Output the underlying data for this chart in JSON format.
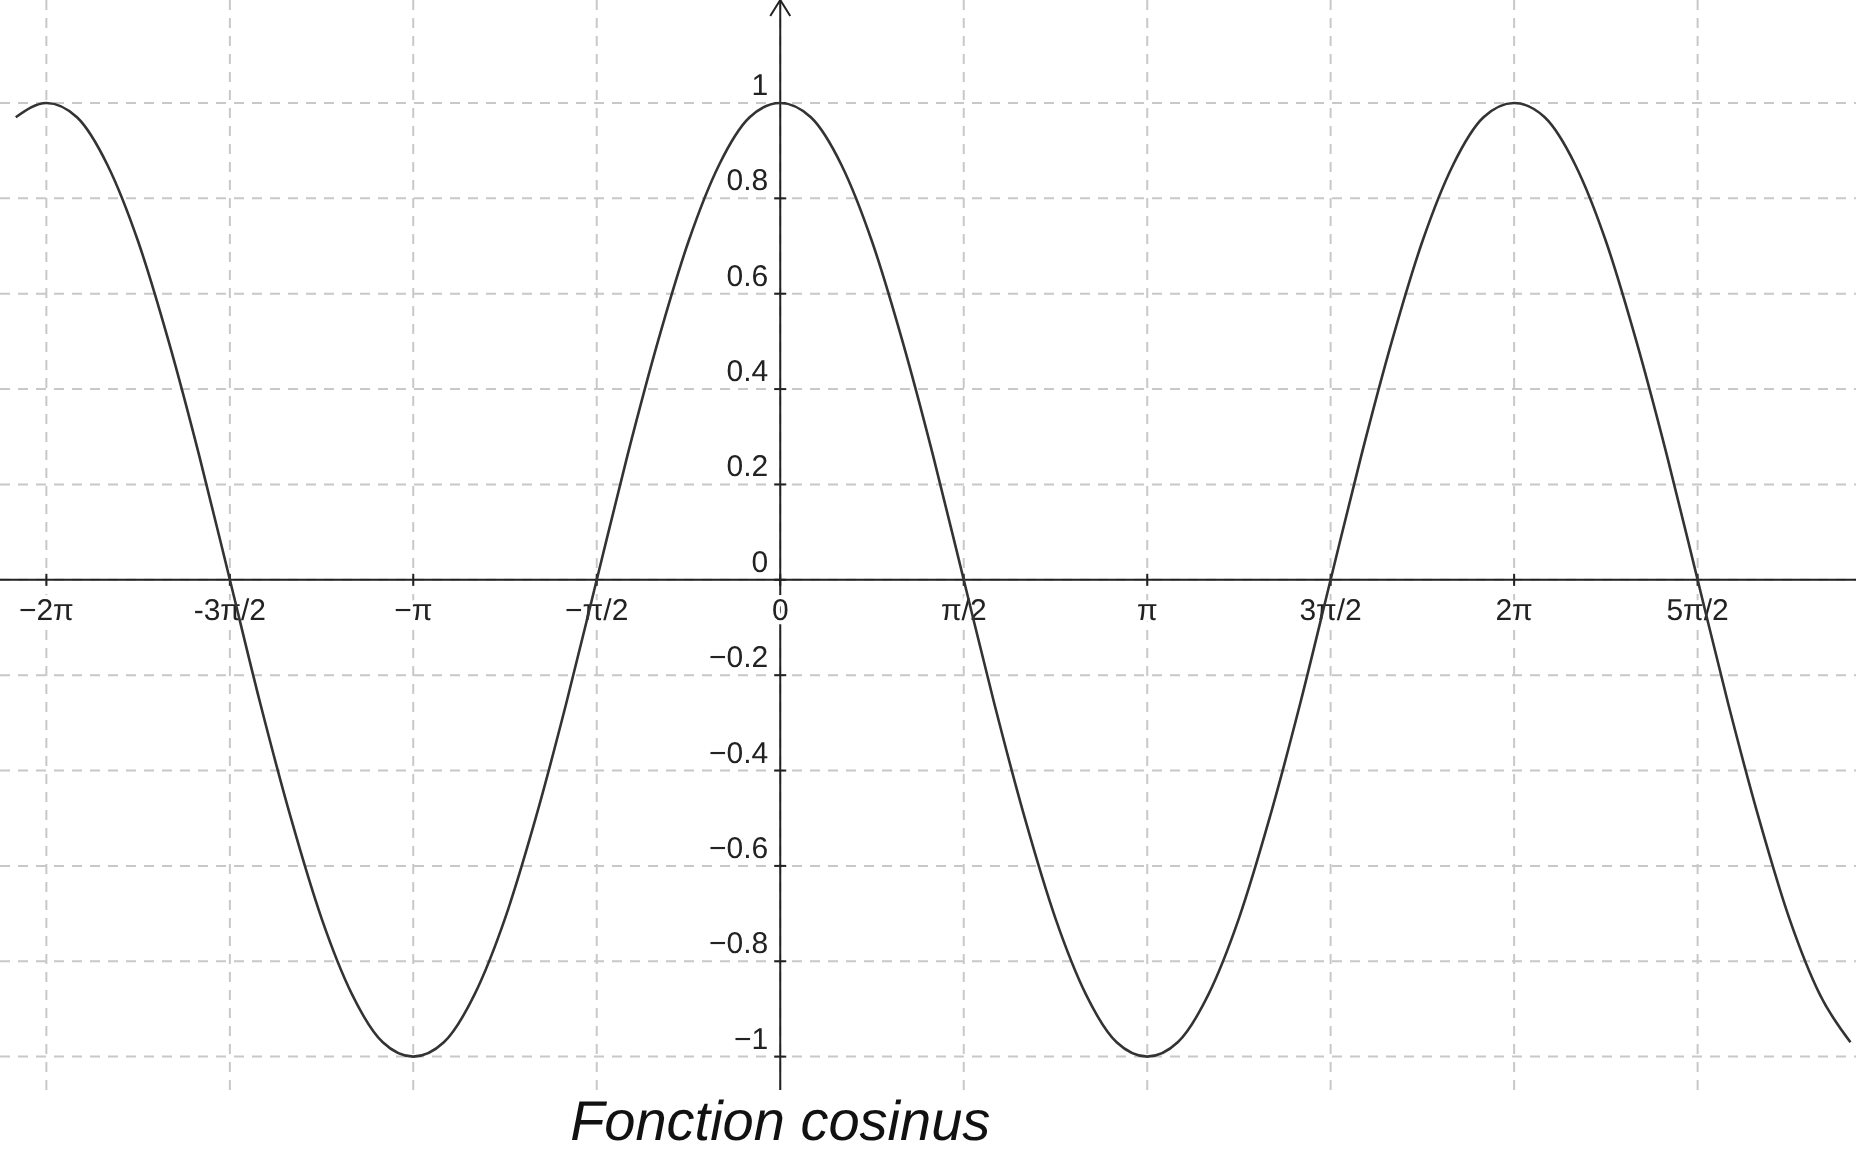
{
  "chart_data": {
    "type": "line",
    "title": "Fonction cosinus",
    "x": [
      -6.545,
      -6.283,
      -6.021,
      -5.76,
      -5.498,
      -5.236,
      -4.974,
      -4.712,
      -4.451,
      -4.189,
      -3.927,
      -3.665,
      -3.403,
      -3.142,
      -2.88,
      -2.618,
      -2.356,
      -2.094,
      -1.833,
      -1.571,
      -1.309,
      -1.047,
      -0.785,
      -0.524,
      -0.262,
      0,
      0.262,
      0.524,
      0.785,
      1.047,
      1.309,
      1.571,
      1.833,
      2.094,
      2.356,
      2.618,
      2.88,
      3.142,
      3.403,
      3.665,
      3.927,
      4.189,
      4.451,
      4.712,
      4.974,
      5.236,
      5.498,
      5.76,
      6.021,
      6.283,
      6.545,
      6.807,
      7.069,
      7.33,
      7.592,
      7.854,
      8.116,
      8.378,
      8.639,
      8.901,
      9.163
    ],
    "series": [
      {
        "color": "#333333",
        "values": [
          0.97,
          1,
          0.97,
          0.87,
          0.71,
          0.5,
          0.26,
          0,
          -0.26,
          -0.5,
          -0.71,
          -0.87,
          -0.97,
          -1,
          -0.97,
          -0.87,
          -0.71,
          -0.5,
          -0.26,
          0,
          0.26,
          0.5,
          0.71,
          0.87,
          0.97,
          1,
          0.97,
          0.87,
          0.71,
          0.5,
          0.26,
          0,
          -0.26,
          -0.5,
          -0.71,
          -0.87,
          -0.97,
          -1,
          -0.97,
          -0.87,
          -0.71,
          -0.5,
          -0.26,
          0,
          0.26,
          0.5,
          0.71,
          0.87,
          0.97,
          1,
          0.97,
          0.87,
          0.71,
          0.5,
          0.26,
          0,
          -0.26,
          -0.5,
          -0.71,
          -0.87,
          -0.97
        ]
      }
    ],
    "xlim": [
      -6.68,
      9.21
    ],
    "ylim": [
      -1.07,
      1.216
    ],
    "xticks": [
      {
        "value": -6.283,
        "label": "−2π"
      },
      {
        "value": -4.712,
        "label": "-3π/2"
      },
      {
        "value": -3.142,
        "label": "−π"
      },
      {
        "value": -1.571,
        "label": "−π/2"
      },
      0,
      {
        "value": 1.571,
        "label": "π/2"
      },
      {
        "value": 3.142,
        "label": "π"
      },
      {
        "value": 4.712,
        "label": "3π/2"
      },
      {
        "value": 6.283,
        "label": "2π"
      },
      {
        "value": 7.854,
        "label": "5π/2"
      }
    ],
    "yticks": [
      {
        "value": -1,
        "label": "−1"
      },
      {
        "value": -0.8,
        "label": "−0.8"
      },
      {
        "value": -0.6,
        "label": "−0.6"
      },
      {
        "value": -0.4,
        "label": "−0.4"
      },
      {
        "value": -0.2,
        "label": "−0.2"
      },
      0,
      0.2,
      0.4,
      0.6,
      0.8,
      1
    ],
    "grid": true,
    "marker": "none",
    "line_style": "solid"
  }
}
